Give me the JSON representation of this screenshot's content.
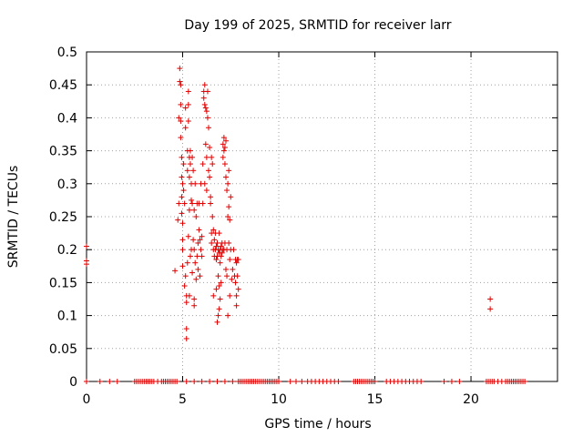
{
  "chart_data": {
    "type": "scatter",
    "title": "Day 199 of 2025, SRMTID for receiver larr",
    "xlabel": "GPS time / hours",
    "ylabel": "SRMTID / TECUs",
    "xlim": [
      0,
      24.5
    ],
    "ylim": [
      0,
      0.5
    ],
    "xticks": [
      0,
      5,
      10,
      15,
      20
    ],
    "xtick_labels": [
      "0",
      "5",
      "10",
      "15",
      "20"
    ],
    "yticks": [
      0,
      0.05,
      0.1,
      0.15,
      0.2,
      0.25,
      0.3,
      0.35,
      0.4,
      0.45,
      0.5
    ],
    "ytick_labels": [
      "0",
      "0.05",
      "0.1",
      "0.15",
      "0.2",
      "0.25",
      "0.3",
      "0.35",
      "0.4",
      "0.45",
      "0.5"
    ],
    "grid": true,
    "marker": "+",
    "marker_color": "#e00000",
    "series": [
      {
        "values": [
          [
            0.0,
            0.205
          ],
          [
            0.0,
            0.183
          ],
          [
            0.0,
            0.178
          ],
          [
            0.0,
            0.0
          ],
          [
            4.6,
            0.168
          ],
          [
            4.75,
            0.245
          ],
          [
            4.8,
            0.27
          ],
          [
            4.8,
            0.4
          ],
          [
            4.85,
            0.475
          ],
          [
            4.85,
            0.455
          ],
          [
            4.9,
            0.45
          ],
          [
            4.9,
            0.42
          ],
          [
            4.9,
            0.395
          ],
          [
            4.9,
            0.37
          ],
          [
            4.95,
            0.34
          ],
          [
            4.95,
            0.31
          ],
          [
            4.95,
            0.28
          ],
          [
            4.95,
            0.255
          ],
          [
            5.0,
            0.3
          ],
          [
            5.0,
            0.24
          ],
          [
            5.0,
            0.215
          ],
          [
            5.0,
            0.2
          ],
          [
            5.0,
            0.175
          ],
          [
            5.05,
            0.33
          ],
          [
            5.05,
            0.29
          ],
          [
            5.1,
            0.27
          ],
          [
            5.1,
            0.145
          ],
          [
            5.15,
            0.415
          ],
          [
            5.15,
            0.385
          ],
          [
            5.15,
            0.16
          ],
          [
            5.2,
            0.13
          ],
          [
            5.2,
            0.12
          ],
          [
            5.2,
            0.08
          ],
          [
            5.2,
            0.065
          ],
          [
            5.25,
            0.35
          ],
          [
            5.25,
            0.32
          ],
          [
            5.25,
            0.18
          ],
          [
            5.3,
            0.44
          ],
          [
            5.3,
            0.42
          ],
          [
            5.3,
            0.395
          ],
          [
            5.3,
            0.22
          ],
          [
            5.35,
            0.34
          ],
          [
            5.35,
            0.31
          ],
          [
            5.35,
            0.26
          ],
          [
            5.35,
            0.13
          ],
          [
            5.4,
            0.35
          ],
          [
            5.4,
            0.33
          ],
          [
            5.4,
            0.19
          ],
          [
            5.45,
            0.3
          ],
          [
            5.45,
            0.275
          ],
          [
            5.45,
            0.2
          ],
          [
            5.5,
            0.34
          ],
          [
            5.5,
            0.27
          ],
          [
            5.5,
            0.165
          ],
          [
            5.55,
            0.32
          ],
          [
            5.55,
            0.215
          ],
          [
            5.6,
            0.26
          ],
          [
            5.6,
            0.2
          ],
          [
            5.6,
            0.125
          ],
          [
            5.6,
            0.115
          ],
          [
            5.65,
            0.18
          ],
          [
            5.65,
            0.3
          ],
          [
            5.7,
            0.25
          ],
          [
            5.7,
            0.155
          ],
          [
            5.75,
            0.27
          ],
          [
            5.75,
            0.19
          ],
          [
            5.8,
            0.17
          ],
          [
            5.8,
            0.21
          ],
          [
            5.85,
            0.27
          ],
          [
            5.85,
            0.23
          ],
          [
            5.9,
            0.215
          ],
          [
            5.9,
            0.16
          ],
          [
            5.95,
            0.3
          ],
          [
            5.95,
            0.2
          ],
          [
            6.0,
            0.22
          ],
          [
            6.0,
            0.19
          ],
          [
            6.05,
            0.33
          ],
          [
            6.05,
            0.27
          ],
          [
            6.1,
            0.44
          ],
          [
            6.1,
            0.43
          ],
          [
            6.15,
            0.45
          ],
          [
            6.15,
            0.42
          ],
          [
            6.15,
            0.3
          ],
          [
            6.2,
            0.415
          ],
          [
            6.2,
            0.36
          ],
          [
            6.25,
            0.41
          ],
          [
            6.25,
            0.34
          ],
          [
            6.25,
            0.29
          ],
          [
            6.3,
            0.44
          ],
          [
            6.3,
            0.4
          ],
          [
            6.35,
            0.385
          ],
          [
            6.35,
            0.32
          ],
          [
            6.4,
            0.355
          ],
          [
            6.4,
            0.31
          ],
          [
            6.45,
            0.28
          ],
          [
            6.45,
            0.27
          ],
          [
            6.5,
            0.225
          ],
          [
            6.5,
            0.21
          ],
          [
            6.5,
            0.34
          ],
          [
            6.55,
            0.33
          ],
          [
            6.55,
            0.25
          ],
          [
            6.6,
            0.23
          ],
          [
            6.6,
            0.2
          ],
          [
            6.6,
            0.13
          ],
          [
            6.65,
            0.215
          ],
          [
            6.65,
            0.19
          ],
          [
            6.7,
            0.225
          ],
          [
            6.7,
            0.2
          ],
          [
            6.75,
            0.205
          ],
          [
            6.75,
            0.185
          ],
          [
            6.75,
            0.14
          ],
          [
            6.8,
            0.21
          ],
          [
            6.8,
            0.19
          ],
          [
            6.8,
            0.09
          ],
          [
            6.85,
            0.2
          ],
          [
            6.85,
            0.16
          ],
          [
            6.85,
            0.1
          ],
          [
            6.9,
            0.225
          ],
          [
            6.9,
            0.195
          ],
          [
            6.9,
            0.145
          ],
          [
            6.9,
            0.11
          ],
          [
            6.95,
            0.2
          ],
          [
            6.95,
            0.18
          ],
          [
            6.95,
            0.125
          ],
          [
            7.0,
            0.205
          ],
          [
            7.0,
            0.19
          ],
          [
            7.0,
            0.15
          ],
          [
            7.05,
            0.21
          ],
          [
            7.05,
            0.195
          ],
          [
            7.1,
            0.36
          ],
          [
            7.1,
            0.34
          ],
          [
            7.1,
            0.2
          ],
          [
            7.15,
            0.37
          ],
          [
            7.15,
            0.35
          ],
          [
            7.15,
            0.2
          ],
          [
            7.2,
            0.355
          ],
          [
            7.2,
            0.33
          ],
          [
            7.2,
            0.21
          ],
          [
            7.25,
            0.365
          ],
          [
            7.25,
            0.31
          ],
          [
            7.25,
            0.17
          ],
          [
            7.3,
            0.29
          ],
          [
            7.3,
            0.2
          ],
          [
            7.3,
            0.16
          ],
          [
            7.35,
            0.3
          ],
          [
            7.35,
            0.25
          ],
          [
            7.35,
            0.1
          ],
          [
            7.4,
            0.32
          ],
          [
            7.4,
            0.265
          ],
          [
            7.4,
            0.21
          ],
          [
            7.45,
            0.245
          ],
          [
            7.45,
            0.185
          ],
          [
            7.45,
            0.13
          ],
          [
            7.5,
            0.28
          ],
          [
            7.5,
            0.2
          ],
          [
            7.55,
            0.155
          ],
          [
            7.6,
            0.17
          ],
          [
            7.65,
            0.2
          ],
          [
            7.7,
            0.16
          ],
          [
            7.75,
            0.185
          ],
          [
            7.75,
            0.15
          ],
          [
            7.8,
            0.18
          ],
          [
            7.8,
            0.13
          ],
          [
            7.8,
            0.115
          ],
          [
            7.85,
            0.185
          ],
          [
            7.85,
            0.16
          ],
          [
            7.9,
            0.185
          ],
          [
            7.9,
            0.14
          ],
          [
            21.0,
            0.125
          ],
          [
            21.0,
            0.11
          ],
          [
            0.7,
            0
          ],
          [
            1.2,
            0
          ],
          [
            1.6,
            0
          ],
          [
            2.5,
            0
          ],
          [
            2.6,
            0
          ],
          [
            2.7,
            0
          ],
          [
            2.8,
            0
          ],
          [
            2.9,
            0
          ],
          [
            3.0,
            0
          ],
          [
            3.1,
            0
          ],
          [
            3.2,
            0
          ],
          [
            3.3,
            0
          ],
          [
            3.4,
            0
          ],
          [
            3.5,
            0
          ],
          [
            3.7,
            0
          ],
          [
            3.9,
            0
          ],
          [
            4.0,
            0
          ],
          [
            4.1,
            0
          ],
          [
            4.2,
            0
          ],
          [
            4.3,
            0
          ],
          [
            4.4,
            0
          ],
          [
            4.5,
            0
          ],
          [
            4.6,
            0
          ],
          [
            4.7,
            0
          ],
          [
            5.2,
            0
          ],
          [
            5.6,
            0
          ],
          [
            6.0,
            0
          ],
          [
            6.4,
            0
          ],
          [
            6.8,
            0
          ],
          [
            7.2,
            0
          ],
          [
            7.6,
            0
          ],
          [
            7.9,
            0
          ],
          [
            8.0,
            0
          ],
          [
            8.1,
            0
          ],
          [
            8.2,
            0
          ],
          [
            8.3,
            0
          ],
          [
            8.4,
            0
          ],
          [
            8.5,
            0
          ],
          [
            8.6,
            0
          ],
          [
            8.7,
            0
          ],
          [
            8.8,
            0
          ],
          [
            8.9,
            0
          ],
          [
            9.0,
            0
          ],
          [
            9.1,
            0
          ],
          [
            9.2,
            0
          ],
          [
            9.3,
            0
          ],
          [
            9.4,
            0
          ],
          [
            9.5,
            0
          ],
          [
            9.6,
            0
          ],
          [
            9.7,
            0
          ],
          [
            9.8,
            0
          ],
          [
            9.9,
            0
          ],
          [
            10.0,
            0
          ],
          [
            10.6,
            0
          ],
          [
            10.9,
            0
          ],
          [
            11.2,
            0
          ],
          [
            11.5,
            0
          ],
          [
            11.7,
            0
          ],
          [
            11.9,
            0
          ],
          [
            12.1,
            0
          ],
          [
            12.3,
            0
          ],
          [
            12.5,
            0
          ],
          [
            12.7,
            0
          ],
          [
            12.9,
            0
          ],
          [
            13.1,
            0
          ],
          [
            13.9,
            0
          ],
          [
            14.0,
            0
          ],
          [
            14.1,
            0
          ],
          [
            14.2,
            0
          ],
          [
            14.3,
            0
          ],
          [
            14.4,
            0
          ],
          [
            14.5,
            0
          ],
          [
            14.6,
            0
          ],
          [
            14.7,
            0
          ],
          [
            14.8,
            0
          ],
          [
            14.9,
            0
          ],
          [
            15.0,
            0
          ],
          [
            15.6,
            0
          ],
          [
            15.8,
            0
          ],
          [
            16.0,
            0
          ],
          [
            16.2,
            0
          ],
          [
            16.4,
            0
          ],
          [
            16.6,
            0
          ],
          [
            16.8,
            0
          ],
          [
            17.0,
            0
          ],
          [
            17.2,
            0
          ],
          [
            17.4,
            0
          ],
          [
            18.6,
            0
          ],
          [
            19.0,
            0
          ],
          [
            19.4,
            0
          ],
          [
            20.8,
            0
          ],
          [
            20.9,
            0
          ],
          [
            21.0,
            0
          ],
          [
            21.1,
            0
          ],
          [
            21.2,
            0
          ],
          [
            21.4,
            0
          ],
          [
            21.6,
            0
          ],
          [
            21.8,
            0
          ],
          [
            21.9,
            0
          ],
          [
            22.0,
            0
          ],
          [
            22.1,
            0
          ],
          [
            22.2,
            0
          ],
          [
            22.3,
            0
          ],
          [
            22.4,
            0
          ],
          [
            22.5,
            0
          ],
          [
            22.6,
            0
          ],
          [
            22.7,
            0
          ],
          [
            22.8,
            0
          ]
        ]
      }
    ]
  }
}
